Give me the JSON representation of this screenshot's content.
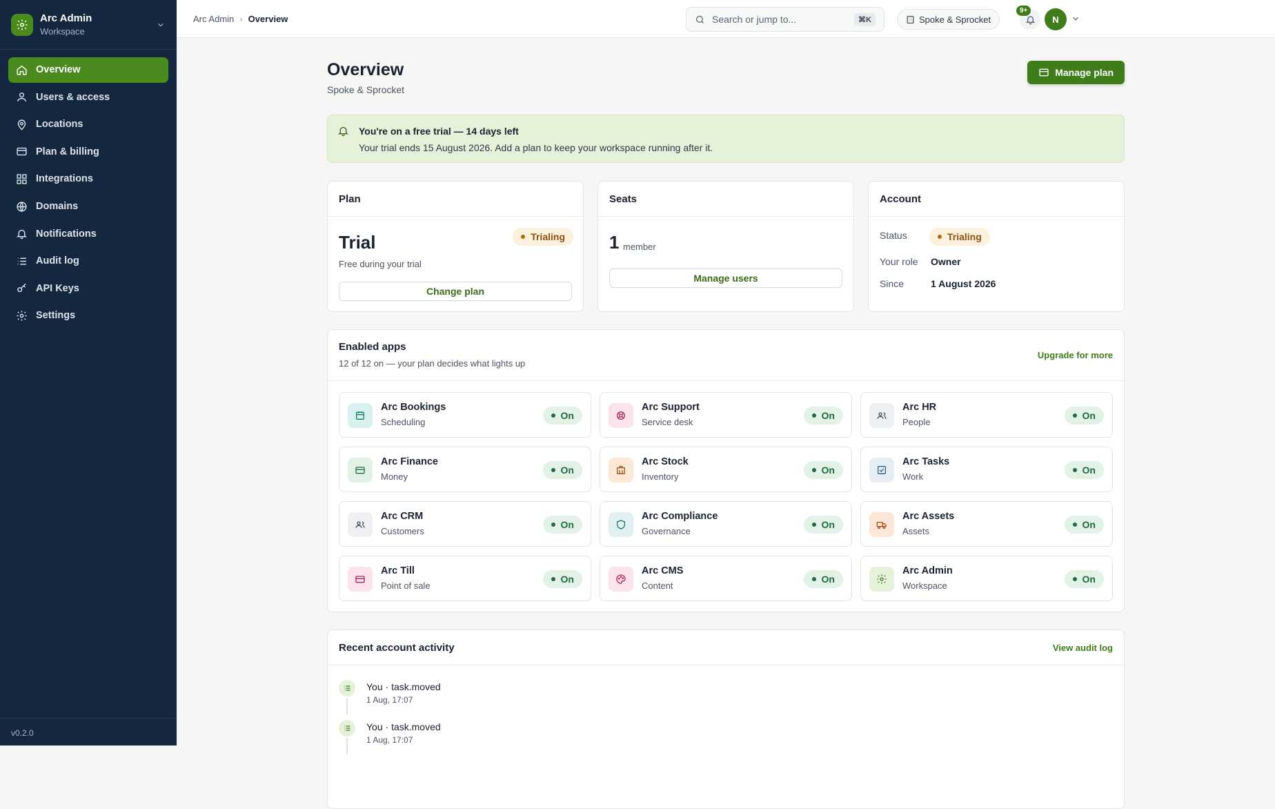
{
  "sidebar": {
    "brand_name": "Arc Admin",
    "brand_sub": "Workspace",
    "items": [
      {
        "label": "Overview",
        "icon": "home-icon",
        "active": true
      },
      {
        "label": "Users & access",
        "icon": "users-icon"
      },
      {
        "label": "Locations",
        "icon": "map-pin-icon"
      },
      {
        "label": "Plan & billing",
        "icon": "credit-card-icon"
      },
      {
        "label": "Integrations",
        "icon": "grid-icon"
      },
      {
        "label": "Domains",
        "icon": "globe-icon"
      },
      {
        "label": "Notifications",
        "icon": "bell-icon"
      },
      {
        "label": "Audit log",
        "icon": "list-icon"
      },
      {
        "label": "API Keys",
        "icon": "key-icon"
      },
      {
        "label": "Settings",
        "icon": "gear-icon"
      }
    ],
    "version": "v0.2.0"
  },
  "topbar": {
    "breadcrumb_root": "Arc Admin",
    "breadcrumb_current": "Overview",
    "search_placeholder": "Search or jump to...",
    "search_shortcut": "⌘K",
    "tenant": "Spoke & Sprocket",
    "notif_badge": "9+",
    "avatar_initial": "N"
  },
  "page": {
    "title": "Overview",
    "subtitle": "Spoke & Sprocket",
    "manage_plan": "Manage plan"
  },
  "trial_banner": {
    "title": "You're on a free trial — 14 days left",
    "text": "Your trial ends 15 August 2026. Add a plan to keep your workspace running after it."
  },
  "plan_card": {
    "header": "Plan",
    "plan_name": "Trial",
    "status": "Trialing",
    "note": "Free during your trial",
    "button": "Change plan"
  },
  "seats_card": {
    "header": "Seats",
    "count": "1",
    "unit": "member",
    "button": "Manage users"
  },
  "account_card": {
    "header": "Account",
    "status_label": "Status",
    "status_value": "Trialing",
    "role_label": "Your role",
    "role_value": "Owner",
    "since_label": "Since",
    "since_value": "1 August 2026"
  },
  "apps": {
    "title": "Enabled apps",
    "subtitle": "12 of 12 on — your plan decides what lights up",
    "upgrade": "Upgrade for more",
    "on_label": "On",
    "items": [
      {
        "name": "Arc Bookings",
        "cat": "Scheduling",
        "icon": "calendar-icon",
        "bg": "#d9f1ee",
        "fg": "#1f7a6e"
      },
      {
        "name": "Arc Support",
        "cat": "Service desk",
        "icon": "lifebuoy-icon",
        "bg": "#fbe3ec",
        "fg": "#b0285a"
      },
      {
        "name": "Arc HR",
        "cat": "People",
        "icon": "people-icon",
        "bg": "#edf0f3",
        "fg": "#3e4c5c"
      },
      {
        "name": "Arc Finance",
        "cat": "Money",
        "icon": "card-icon",
        "bg": "#e2f1e6",
        "fg": "#2a6e43"
      },
      {
        "name": "Arc Stock",
        "cat": "Inventory",
        "icon": "box-icon",
        "bg": "#fbe9d6",
        "fg": "#9a5a17"
      },
      {
        "name": "Arc Tasks",
        "cat": "Work",
        "icon": "checkbox-icon",
        "bg": "#e6edf5",
        "fg": "#2f5f8d"
      },
      {
        "name": "Arc CRM",
        "cat": "Customers",
        "icon": "people-icon",
        "bg": "#eef0f3",
        "fg": "#3e4c5c"
      },
      {
        "name": "Arc Compliance",
        "cat": "Governance",
        "icon": "shield-icon",
        "bg": "#e1f1f1",
        "fg": "#22706f"
      },
      {
        "name": "Arc Assets",
        "cat": "Assets",
        "icon": "truck-icon",
        "bg": "#fce6d8",
        "fg": "#b0501c"
      },
      {
        "name": "Arc Till",
        "cat": "Point of sale",
        "icon": "card-icon",
        "bg": "#fbe2ec",
        "fg": "#b0285a"
      },
      {
        "name": "Arc CMS",
        "cat": "Content",
        "icon": "palette-icon",
        "bg": "#fbe4ea",
        "fg": "#b0285a"
      },
      {
        "name": "Arc Admin",
        "cat": "Workspace",
        "icon": "gear-icon",
        "bg": "#e5f1d9",
        "fg": "#3f7d1a"
      }
    ]
  },
  "activity": {
    "title": "Recent account activity",
    "view_all": "View audit log",
    "items": [
      {
        "text": "You · task.moved",
        "time": "1 Aug, 17:07"
      },
      {
        "text": "You · task.moved",
        "time": "1 Aug, 17:07"
      }
    ]
  },
  "colors": {
    "sidebar_bg": "#14273f",
    "accent": "#3f7d1a",
    "accent_active": "#4b8a1e",
    "trial_banner_bg": "#e5f1d9"
  }
}
